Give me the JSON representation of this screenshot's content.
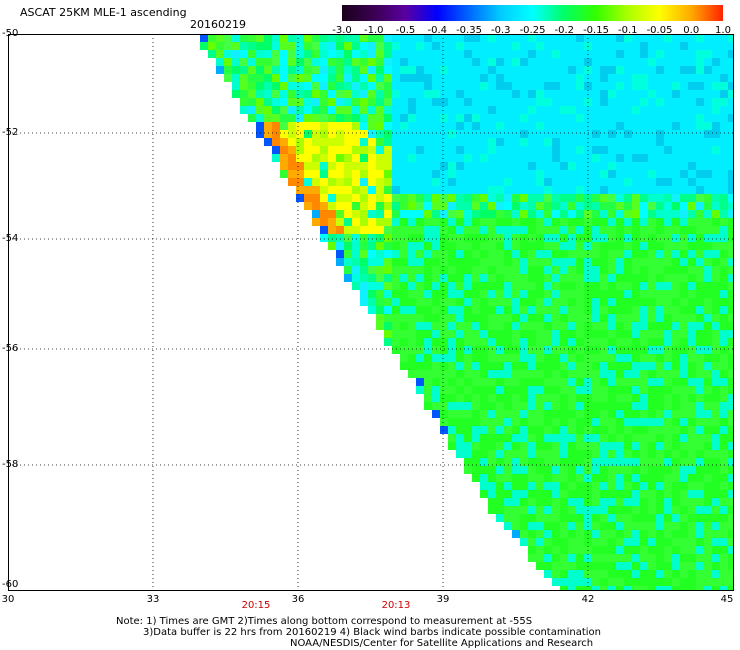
{
  "header": {
    "title": "ASCAT 25KM MLE-1 ascending",
    "date": "20160219"
  },
  "colorbar": {
    "labels": [
      "-3.0",
      "-1.0",
      "-0.5",
      "-0.4",
      "-0.35",
      "-0.3",
      "-0.25",
      "-0.2",
      "-0.15",
      "-0.1",
      "-0.05",
      "0.0",
      "1.0"
    ],
    "colors": [
      "#1a001a",
      "#3a0052",
      "#5a00a0",
      "#0000ff",
      "#0066ff",
      "#00ccff",
      "#00ffff",
      "#00ff66",
      "#33ff00",
      "#aaff00",
      "#ffff00",
      "#ffaa00",
      "#ff2200"
    ]
  },
  "axes": {
    "lat_labels": [
      "-50",
      "-52",
      "-54",
      "-56",
      "-58",
      "-60"
    ],
    "lon_labels": [
      "30",
      "33",
      "36",
      "39",
      "42",
      "45"
    ],
    "time_labels": [
      "20:15",
      "20:13"
    ]
  },
  "notes": {
    "line1": "Note: 1) Times are GMT 2)Times along bottom correspond to measurement at -55S",
    "line2": "3)Data buffer is 22 hrs from 20160219 4) Black wind barbs indicate possible contamination",
    "line3": "NOAA/NESDIS/Center for Satellite Applications and Research"
  }
}
